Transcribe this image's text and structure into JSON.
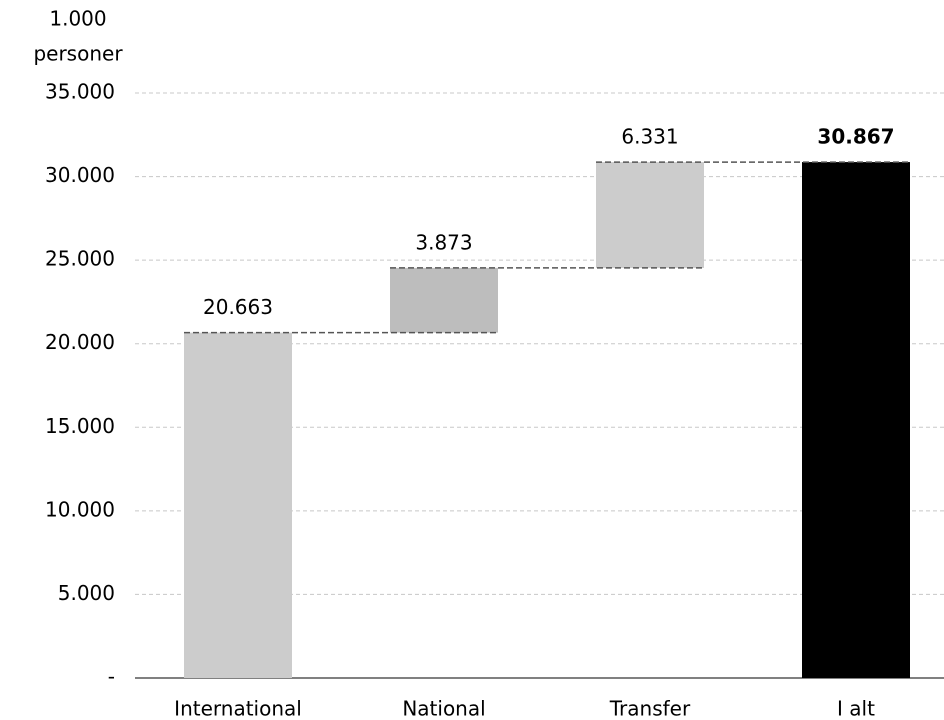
{
  "chart_data": {
    "type": "waterfall",
    "ylabel": "1.000 personer",
    "categories": [
      "International",
      "National",
      "Transfer",
      "I alt"
    ],
    "values": [
      20663,
      3873,
      6331,
      30867
    ],
    "value_labels": [
      "20.663",
      "3.873",
      "6.331",
      "30.867"
    ],
    "measure": [
      "relative",
      "relative",
      "relative",
      "total"
    ],
    "colors": [
      "#cccccc",
      "#bdbdbd",
      "#cccccc",
      "#000000"
    ],
    "ylim": [
      0,
      35000
    ],
    "yticks": [
      {
        "value": 0,
        "label": "-"
      },
      {
        "value": 5000,
        "label": "5.000"
      },
      {
        "value": 10000,
        "label": "10.000"
      },
      {
        "value": 15000,
        "label": "15.000"
      },
      {
        "value": 20000,
        "label": "20.000"
      },
      {
        "value": 25000,
        "label": "25.000"
      },
      {
        "value": 30000,
        "label": "30.000"
      },
      {
        "value": 35000,
        "label": "35.000"
      }
    ],
    "grid": true
  }
}
